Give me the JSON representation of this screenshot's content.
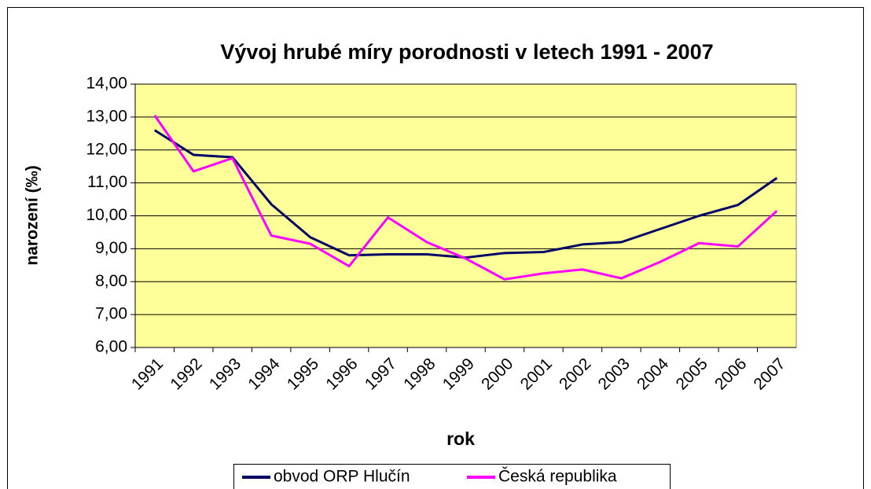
{
  "chart_data": {
    "type": "line",
    "title": "Vývoj hrubé míry porodnosti v letech 1991 - 2007",
    "x_label": "rok",
    "y_label": "narození (‰)",
    "categories": [
      "1991",
      "1992",
      "1993",
      "1994",
      "1995",
      "1996",
      "1997",
      "1998",
      "1999",
      "2000",
      "2001",
      "2002",
      "2003",
      "2004",
      "2005",
      "2006",
      "2007"
    ],
    "series": [
      {
        "name": "obvod ORP Hlučín",
        "color": "#000066",
        "values": [
          12.6,
          11.85,
          11.78,
          10.35,
          9.35,
          8.8,
          8.83,
          8.83,
          8.73,
          8.87,
          8.9,
          9.13,
          9.2,
          9.6,
          10.0,
          10.33,
          11.15
        ]
      },
      {
        "name": "Česká republika",
        "color": "#ff00ff",
        "values": [
          13.05,
          11.35,
          11.75,
          9.4,
          9.15,
          8.47,
          9.95,
          9.2,
          8.7,
          8.07,
          8.25,
          8.37,
          8.1,
          8.6,
          9.17,
          9.07,
          10.15
        ]
      }
    ],
    "ylim": [
      6,
      14
    ],
    "yticks": [
      {
        "value": 6,
        "label": "6,00"
      },
      {
        "value": 7,
        "label": "7,00"
      },
      {
        "value": 8,
        "label": "8,00"
      },
      {
        "value": 9,
        "label": "9,00"
      },
      {
        "value": 10,
        "label": "10,00"
      },
      {
        "value": 11,
        "label": "11,00"
      },
      {
        "value": 12,
        "label": "12,00"
      },
      {
        "value": 13,
        "label": "13,00"
      },
      {
        "value": 14,
        "label": "14,00"
      }
    ],
    "grid": true,
    "plot_background": "#ffff99",
    "legend": "bottom"
  }
}
